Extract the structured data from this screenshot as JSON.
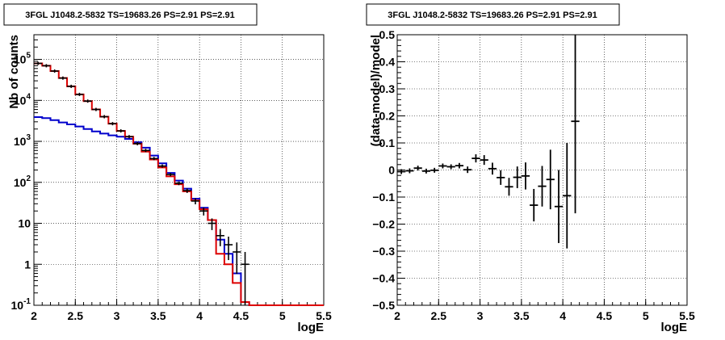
{
  "chart_data": [
    {
      "type": "line",
      "title": "3FGL J1048.2-5832 TS=19683.26 PS=2.91 PS=2.91",
      "xlabel": "logE",
      "ylabel": "Nb of counts",
      "xlim": [
        2,
        5.5
      ],
      "ylim": [
        0.1,
        400000
      ],
      "yscale": "log",
      "grid": true,
      "x_ticks": [
        "2",
        "2.5",
        "3",
        "3.5",
        "4",
        "4.5",
        "5",
        "5.5"
      ],
      "y_ticks": [
        {
          "value": 0.1,
          "mant": "10",
          "exp": "-1"
        },
        {
          "value": 1,
          "mant": "1",
          "exp": ""
        },
        {
          "value": 10,
          "mant": "10",
          "exp": ""
        },
        {
          "value": 100,
          "mant": "10",
          "exp": "2"
        },
        {
          "value": 1000,
          "mant": "10",
          "exp": "3"
        },
        {
          "value": 10000,
          "mant": "10",
          "exp": "4"
        },
        {
          "value": 100000,
          "mant": "10",
          "exp": "5"
        }
      ],
      "bin_edges": [
        2.0,
        2.1,
        2.2,
        2.3,
        2.4,
        2.5,
        2.6,
        2.7,
        2.8,
        2.9,
        3.0,
        3.1,
        3.2,
        3.3,
        3.4,
        3.5,
        3.6,
        3.7,
        3.8,
        3.9,
        4.0,
        4.1,
        4.2,
        4.3,
        4.4,
        4.5,
        4.6,
        4.7,
        4.8,
        4.9,
        5.0,
        5.1,
        5.2,
        5.3,
        5.4,
        5.5
      ],
      "series": [
        {
          "kind": "data",
          "color": "#000000",
          "points": [
            {
              "x": 2.05,
              "y": 80000
            },
            {
              "x": 2.15,
              "y": 70000
            },
            {
              "x": 2.25,
              "y": 52000
            },
            {
              "x": 2.35,
              "y": 35000
            },
            {
              "x": 2.45,
              "y": 22000
            },
            {
              "x": 2.55,
              "y": 14000
            },
            {
              "x": 2.65,
              "y": 9600
            },
            {
              "x": 2.75,
              "y": 6000
            },
            {
              "x": 2.85,
              "y": 4000
            },
            {
              "x": 2.95,
              "y": 2700
            },
            {
              "x": 3.05,
              "y": 1800
            },
            {
              "x": 3.15,
              "y": 1300
            },
            {
              "x": 3.25,
              "y": 880
            },
            {
              "x": 3.35,
              "y": 600
            },
            {
              "x": 3.45,
              "y": 380
            },
            {
              "x": 3.55,
              "y": 250
            },
            {
              "x": 3.65,
              "y": 155
            },
            {
              "x": 3.75,
              "y": 95
            },
            {
              "x": 3.85,
              "y": 63
            },
            {
              "x": 3.95,
              "y": 35
            },
            {
              "x": 4.05,
              "y": 20
            },
            {
              "x": 4.15,
              "y": 10
            },
            {
              "x": 4.25,
              "y": 5
            },
            {
              "x": 4.35,
              "y": 3
            },
            {
              "x": 4.45,
              "y": 2
            },
            {
              "x": 4.55,
              "y": 1
            }
          ]
        },
        {
          "kind": "model_total",
          "color": "#dd0000",
          "values": [
            80000,
            70000,
            52000,
            35000,
            22000,
            14000,
            9600,
            6000,
            4000,
            2700,
            1800,
            1300,
            880,
            560,
            360,
            230,
            140,
            90,
            60,
            36,
            22,
            12,
            1.8,
            1.0,
            0.35,
            0.12,
            0.1,
            0.1,
            0.1,
            0.1,
            0.1,
            0.1,
            0.1,
            0.1,
            0.1
          ],
          "tail_drop": 4.6
        },
        {
          "kind": "model_source",
          "color": "#0000cc",
          "values": [
            3900,
            3700,
            3300,
            2900,
            2600,
            2300,
            2000,
            1750,
            1550,
            1400,
            1300,
            1150,
            950,
            700,
            450,
            290,
            170,
            110,
            70,
            40,
            24,
            12,
            4,
            1.8,
            0.6,
            0.12,
            0.1,
            0.1,
            0.1,
            0.1,
            0.1,
            0.1,
            0.1,
            0.1,
            0.1
          ]
        }
      ]
    },
    {
      "type": "scatter",
      "title": "3FGL J1048.2-5832 TS=19683.26 PS=2.91 PS=2.91",
      "xlabel": "logE",
      "ylabel": "(data-model)/model",
      "xlim": [
        2,
        5.5
      ],
      "ylim": [
        -0.5,
        0.5
      ],
      "grid": true,
      "x_ticks": [
        "2",
        "2.5",
        "3",
        "3.5",
        "4",
        "4.5",
        "5",
        "5.5"
      ],
      "y_ticks": [
        "−0.5",
        "−0.4",
        "−0.3",
        "−0.2",
        "−0.1",
        "0",
        "0.1",
        "0.2",
        "0.3",
        "0.4",
        "0.5"
      ],
      "y_tick_values": [
        -0.5,
        -0.4,
        -0.3,
        -0.2,
        -0.1,
        0,
        0.1,
        0.2,
        0.3,
        0.4,
        0.5
      ],
      "points": [
        {
          "x": 2.05,
          "y": -0.006,
          "err": 0.003
        },
        {
          "x": 2.15,
          "y": -0.003,
          "err": 0.003
        },
        {
          "x": 2.25,
          "y": 0.007,
          "err": 0.004
        },
        {
          "x": 2.35,
          "y": -0.004,
          "err": 0.005
        },
        {
          "x": 2.45,
          "y": -0.001,
          "err": 0.006
        },
        {
          "x": 2.55,
          "y": 0.015,
          "err": 0.007
        },
        {
          "x": 2.65,
          "y": 0.012,
          "err": 0.008
        },
        {
          "x": 2.75,
          "y": 0.016,
          "err": 0.01
        },
        {
          "x": 2.85,
          "y": 0.001,
          "err": 0.012
        },
        {
          "x": 2.95,
          "y": 0.043,
          "err": 0.015
        },
        {
          "x": 3.05,
          "y": 0.037,
          "err": 0.018
        },
        {
          "x": 3.15,
          "y": 0.005,
          "err": 0.022
        },
        {
          "x": 3.25,
          "y": -0.028,
          "err": 0.027
        },
        {
          "x": 3.35,
          "y": -0.062,
          "err": 0.033
        },
        {
          "x": 3.45,
          "y": -0.027,
          "err": 0.04
        },
        {
          "x": 3.55,
          "y": -0.022,
          "err": 0.05
        },
        {
          "x": 3.65,
          "y": -0.13,
          "err": 0.06
        },
        {
          "x": 3.75,
          "y": -0.06,
          "err": 0.075
        },
        {
          "x": 3.85,
          "y": -0.035,
          "err": 0.11
        },
        {
          "x": 3.95,
          "y": -0.135,
          "err": 0.135
        },
        {
          "x": 4.05,
          "y": -0.095,
          "err": 0.195
        },
        {
          "x": 4.15,
          "y": 0.18,
          "err": 0.34
        }
      ]
    }
  ]
}
